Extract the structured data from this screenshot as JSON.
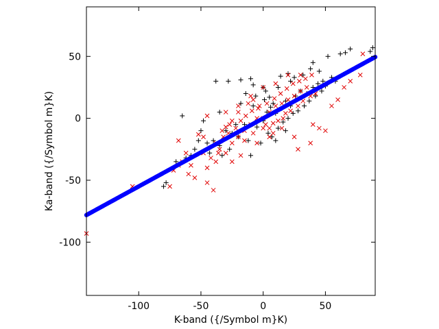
{
  "chart_data": {
    "type": "scatter",
    "xlabel": "K-band ({/Symbol m}K)",
    "ylabel": "Ka-band ({/Symbol m}K)",
    "xlim": [
      -142,
      90
    ],
    "ylim": [
      -143,
      90
    ],
    "xticks": [
      -100,
      -50,
      0,
      50
    ],
    "yticks": [
      -100,
      -50,
      0,
      50
    ],
    "xtick_labels": [
      "-100",
      "-50",
      "0",
      "50"
    ],
    "ytick_labels": [
      "-100",
      "-50",
      "0",
      "50"
    ],
    "grid": false,
    "legend": "none",
    "series": [
      {
        "marker": "plus",
        "color": "#000000",
        "points": [
          [
            -38,
            30
          ],
          [
            -28,
            30
          ],
          [
            -18,
            31
          ],
          [
            -10,
            32
          ],
          [
            -8,
            27
          ],
          [
            0,
            25
          ],
          [
            2,
            22
          ],
          [
            5,
            17
          ],
          [
            12,
            25
          ],
          [
            14,
            34
          ],
          [
            20,
            36
          ],
          [
            22,
            30
          ],
          [
            25,
            33
          ],
          [
            32,
            35
          ],
          [
            38,
            40
          ],
          [
            40,
            45
          ],
          [
            45,
            38
          ],
          [
            52,
            50
          ],
          [
            62,
            52
          ],
          [
            66,
            53
          ],
          [
            70,
            56
          ],
          [
            88,
            57
          ],
          [
            86,
            54
          ],
          [
            -65,
            2
          ],
          [
            -48,
            -2
          ],
          [
            -35,
            5
          ],
          [
            -30,
            -10
          ],
          [
            -25,
            -12
          ],
          [
            -20,
            -15
          ],
          [
            -15,
            -5
          ],
          [
            -12,
            -18
          ],
          [
            -8,
            10
          ],
          [
            -5,
            -7
          ],
          [
            0,
            -2
          ],
          [
            3,
            5
          ],
          [
            6,
            9
          ],
          [
            8,
            12
          ],
          [
            10,
            4
          ],
          [
            15,
            8
          ],
          [
            18,
            14
          ],
          [
            22,
            10
          ],
          [
            26,
            18
          ],
          [
            30,
            22
          ],
          [
            35,
            20
          ],
          [
            40,
            25
          ],
          [
            44,
            28
          ],
          [
            48,
            30
          ],
          [
            55,
            33
          ],
          [
            -55,
            -25
          ],
          [
            -58,
            -30
          ],
          [
            -62,
            -32
          ],
          [
            -70,
            -35
          ],
          [
            -78,
            -52
          ],
          [
            -80,
            -55
          ],
          [
            -45,
            -20
          ],
          [
            -40,
            -18
          ],
          [
            -35,
            -22
          ],
          [
            -50,
            -10
          ],
          [
            -22,
            -5
          ],
          [
            -18,
            12
          ],
          [
            -14,
            20
          ],
          [
            -6,
            18
          ],
          [
            1,
            15
          ],
          [
            4,
            -12
          ],
          [
            7,
            -15
          ],
          [
            12,
            -8
          ],
          [
            16,
            -3
          ],
          [
            20,
            0
          ],
          [
            24,
            4
          ],
          [
            28,
            6
          ],
          [
            33,
            10
          ],
          [
            37,
            14
          ],
          [
            42,
            18
          ],
          [
            47,
            22
          ],
          [
            50,
            26
          ],
          [
            58,
            30
          ],
          [
            -52,
            -18
          ],
          [
            -43,
            -28
          ],
          [
            -33,
            -30
          ],
          [
            -27,
            -25
          ],
          [
            -2,
            -20
          ],
          [
            10,
            -18
          ],
          [
            18,
            -10
          ],
          [
            -10,
            -30
          ]
        ]
      },
      {
        "marker": "x",
        "color": "#e00000",
        "points": [
          [
            -142,
            -93
          ],
          [
            -105,
            -55
          ],
          [
            -75,
            -55
          ],
          [
            -72,
            -42
          ],
          [
            -68,
            -38
          ],
          [
            -65,
            -35
          ],
          [
            -68,
            -18
          ],
          [
            -48,
            -28
          ],
          [
            -40,
            -58
          ],
          [
            -38,
            -35
          ],
          [
            -36,
            -28
          ],
          [
            -30,
            -28
          ],
          [
            -25,
            -20
          ],
          [
            -20,
            -15
          ],
          [
            -15,
            -10
          ],
          [
            -10,
            -5
          ],
          [
            -5,
            0
          ],
          [
            0,
            0
          ],
          [
            5,
            5
          ],
          [
            10,
            10
          ],
          [
            15,
            12
          ],
          [
            20,
            15
          ],
          [
            25,
            18
          ],
          [
            30,
            22
          ],
          [
            35,
            25
          ],
          [
            -48,
            -15
          ],
          [
            -45,
            2
          ],
          [
            -52,
            -13
          ],
          [
            -30,
            -7
          ],
          [
            -25,
            -2
          ],
          [
            -20,
            5
          ],
          [
            -12,
            12
          ],
          [
            -8,
            15
          ],
          [
            -4,
            8
          ],
          [
            2,
            -5
          ],
          [
            5,
            -8
          ],
          [
            8,
            -12
          ],
          [
            12,
            -2
          ],
          [
            18,
            4
          ],
          [
            22,
            6
          ],
          [
            28,
            10
          ],
          [
            32,
            14
          ],
          [
            38,
            18
          ],
          [
            42,
            20
          ],
          [
            -25,
            -35
          ],
          [
            -35,
            -25
          ],
          [
            -18,
            -30
          ],
          [
            -5,
            -20
          ],
          [
            5,
            -15
          ],
          [
            15,
            -8
          ],
          [
            25,
            -15
          ],
          [
            28,
            -25
          ],
          [
            38,
            -20
          ],
          [
            50,
            -10
          ],
          [
            45,
            -8
          ],
          [
            40,
            -5
          ],
          [
            55,
            10
          ],
          [
            60,
            15
          ],
          [
            65,
            25
          ],
          [
            70,
            30
          ],
          [
            78,
            35
          ],
          [
            80,
            52
          ],
          [
            -58,
            -38
          ],
          [
            -60,
            -45
          ],
          [
            -55,
            -48
          ],
          [
            -45,
            -40
          ],
          [
            -42,
            -32
          ],
          [
            -38,
            -20
          ],
          [
            -32,
            -15
          ],
          [
            -28,
            -12
          ],
          [
            -22,
            -8
          ],
          [
            -18,
            -2
          ],
          [
            -14,
            2
          ],
          [
            -9,
            6
          ],
          [
            -3,
            10
          ],
          [
            3,
            12
          ],
          [
            9,
            16
          ],
          [
            14,
            20
          ],
          [
            19,
            24
          ],
          [
            24,
            28
          ],
          [
            29,
            30
          ],
          [
            34,
            32
          ],
          [
            39,
            35
          ],
          [
            -30,
            5
          ],
          [
            -20,
            10
          ],
          [
            -10,
            18
          ],
          [
            0,
            25
          ],
          [
            10,
            28
          ],
          [
            20,
            35
          ],
          [
            30,
            35
          ],
          [
            -15,
            -18
          ],
          [
            -8,
            -12
          ],
          [
            0,
            -8
          ],
          [
            8,
            -4
          ],
          [
            16,
            0
          ],
          [
            -62,
            -28
          ],
          [
            -45,
            -52
          ],
          [
            -33,
            -10
          ],
          [
            -27,
            -5
          ]
        ]
      },
      {
        "marker": "dot",
        "color": "#0000ff",
        "fit_line": {
          "slope": 0.55,
          "intercept": 0,
          "x_from": -142,
          "x_to": 90
        }
      }
    ]
  }
}
